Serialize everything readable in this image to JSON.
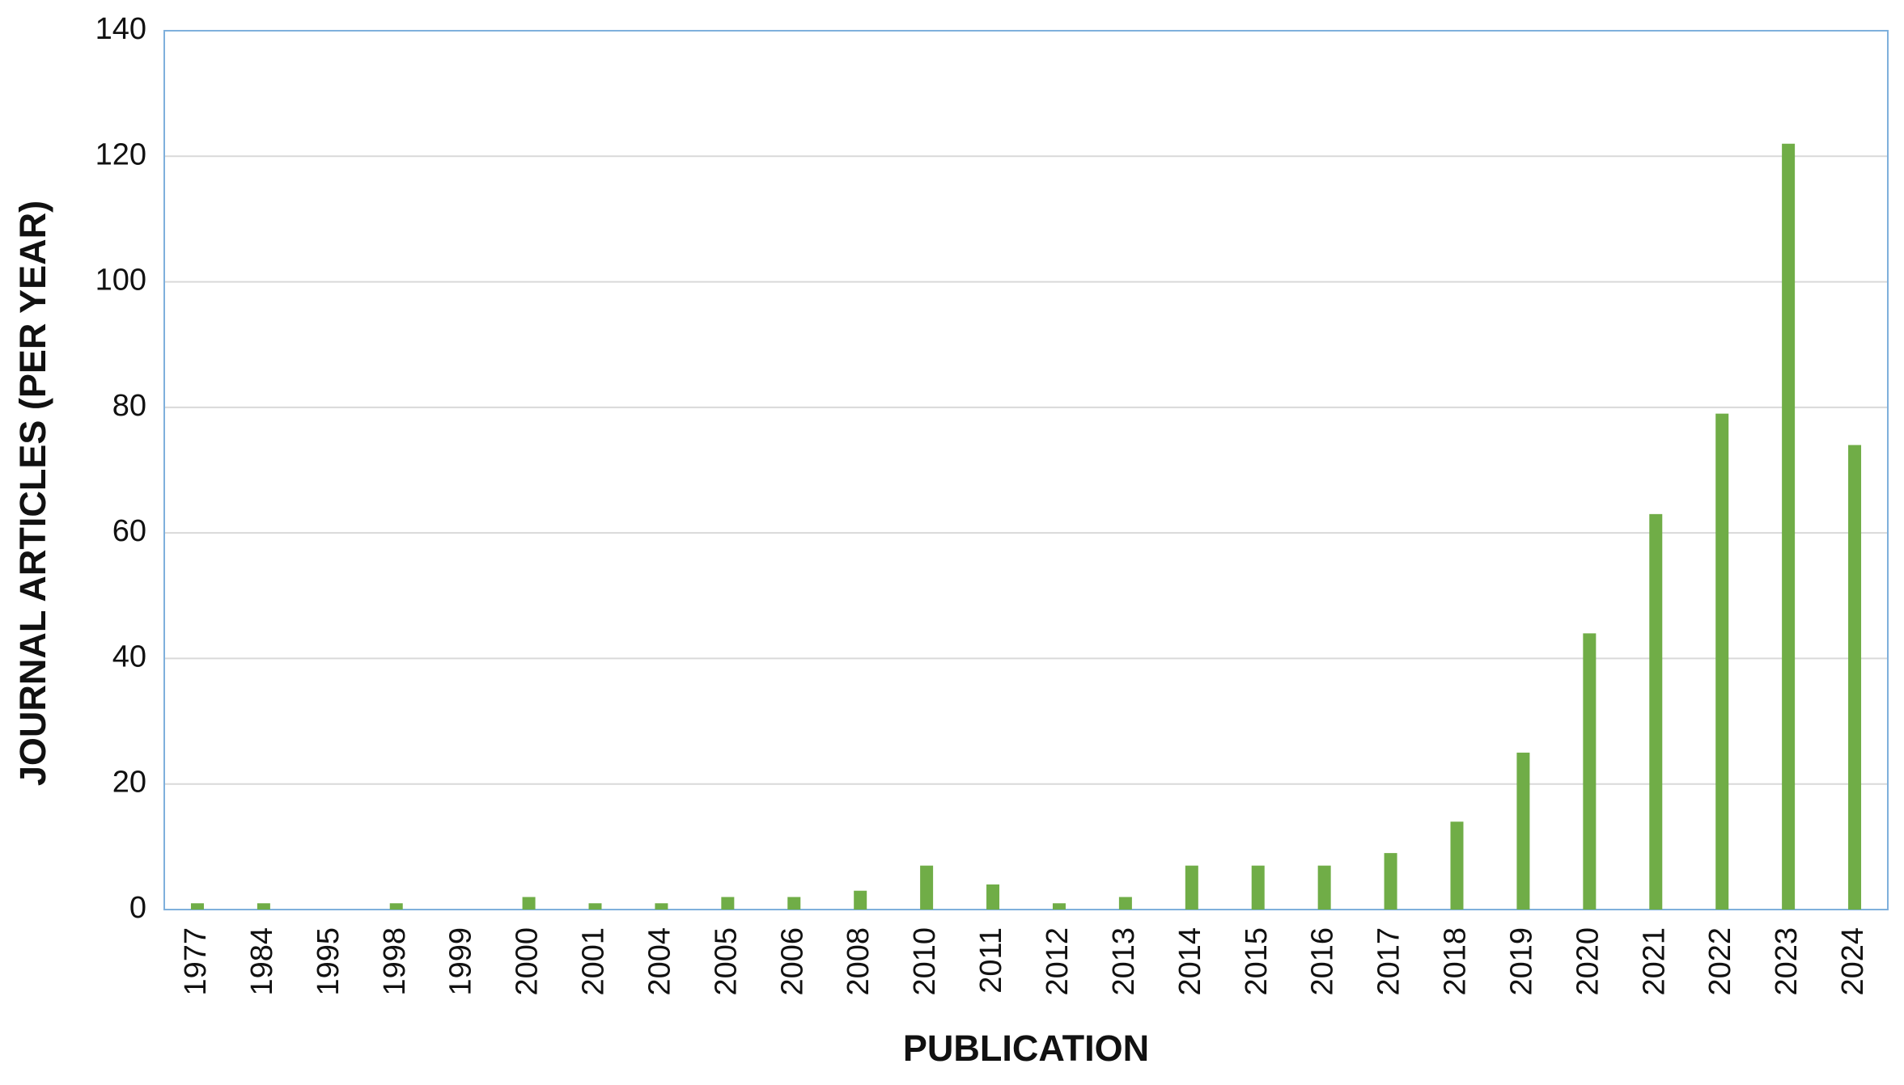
{
  "chart_data": {
    "type": "bar",
    "x_label": "PUBLICATION",
    "y_label": "JOURNAL ARTICLES (PER YEAR)",
    "categories": [
      "1977",
      "1984",
      "1995",
      "1998",
      "1999",
      "2000",
      "2001",
      "2004",
      "2005",
      "2006",
      "2008",
      "2010",
      "2011",
      "2012",
      "2013",
      "2014",
      "2015",
      "2016",
      "2017",
      "2018",
      "2019",
      "2020",
      "2021",
      "2022",
      "2023",
      "2024"
    ],
    "values": [
      1,
      1,
      0,
      1,
      0,
      2,
      1,
      1,
      2,
      2,
      3,
      7,
      4,
      1,
      2,
      7,
      7,
      7,
      9,
      14,
      25,
      44,
      63,
      79,
      122,
      74
    ],
    "color": "#70ad47",
    "ylim": [
      0,
      140
    ],
    "yticks": [
      0,
      20,
      40,
      60,
      80,
      100,
      120,
      140
    ],
    "grid": true
  }
}
